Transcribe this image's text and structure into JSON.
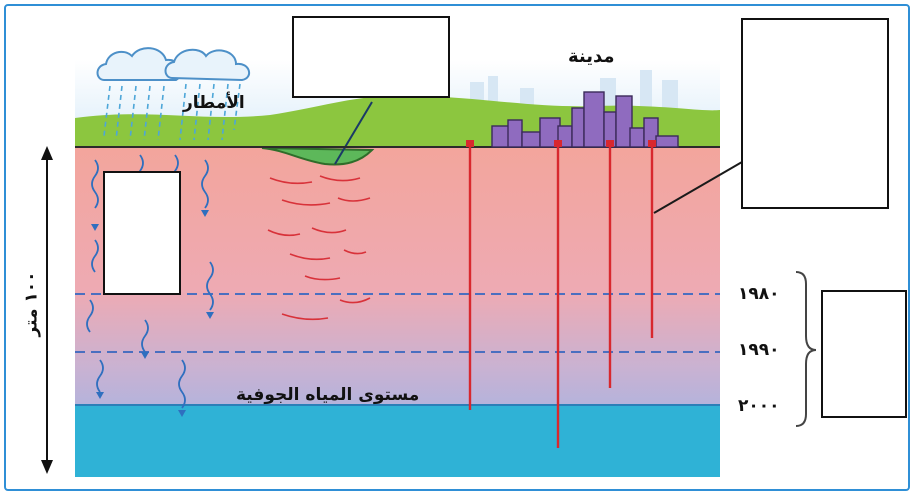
{
  "labels": {
    "rain": "الأمطار",
    "city": "مدينة",
    "groundwater_level": "مستوى المياه الجوفية",
    "depth": "١٠٠ متر"
  },
  "years": [
    "١٩٨٠",
    "١٩٩٠",
    "٢٠٠٠"
  ],
  "answer_boxes": [
    "",
    "",
    "",
    ""
  ],
  "colors": {
    "frame": "#2f8fd6",
    "soil_top": "#f2a7a0",
    "soil_mid": "#e9b4c0",
    "soil_low": "#bdb2d6",
    "aquifer": "#2fb2d6",
    "grass": "#8cc63f",
    "wells": "#d8282e",
    "city": "#8f6bbf"
  }
}
